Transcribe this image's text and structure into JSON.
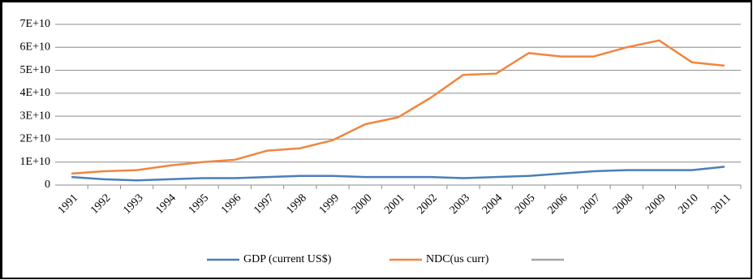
{
  "chart_data": {
    "type": "line",
    "categories": [
      "1991",
      "1992",
      "1993",
      "1994",
      "1995",
      "1996",
      "1997",
      "1998",
      "1999",
      "2000",
      "2001",
      "2002",
      "2003",
      "2004",
      "2005",
      "2006",
      "2007",
      "2008",
      "2009",
      "2010",
      "2011"
    ],
    "series": [
      {
        "name": "GDP (current US$)",
        "color": "#4a7ebb",
        "values": [
          3500000000,
          2500000000,
          2000000000,
          2500000000,
          3000000000,
          3000000000,
          3500000000,
          4000000000,
          4000000000,
          3500000000,
          3500000000,
          3500000000,
          3000000000,
          3500000000,
          4000000000,
          5000000000,
          6000000000,
          6500000000,
          6500000000,
          6500000000,
          8000000000
        ]
      },
      {
        "name": "NDC(us curr)",
        "color": "#f0863c",
        "values": [
          5000000000,
          6000000000,
          6500000000,
          8500000000,
          10000000000,
          11000000000,
          15000000000,
          16000000000,
          19500000000,
          26500000000,
          29500000000,
          38000000000,
          48000000000,
          48500000000,
          57500000000,
          56000000000,
          56000000000,
          60000000000,
          63000000000,
          53500000000,
          52000000000
        ]
      }
    ],
    "ylim": [
      0,
      70000000000
    ],
    "yticks": [
      0,
      {
        "value": 10000000000,
        "label": "1E+10"
      },
      {
        "value": 20000000000,
        "label": "2E+10"
      },
      {
        "value": 30000000000,
        "label": "3E+10"
      },
      {
        "value": 40000000000,
        "label": "4E+10"
      },
      {
        "value": 50000000000,
        "label": "5E+10"
      },
      {
        "value": 60000000000,
        "label": "6E+10"
      },
      {
        "value": 70000000000,
        "label": "7E+10"
      }
    ],
    "grid": true
  }
}
